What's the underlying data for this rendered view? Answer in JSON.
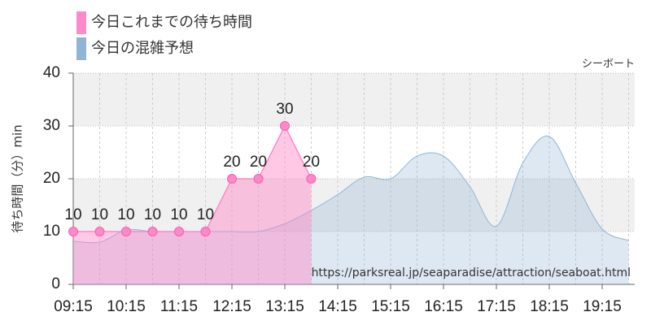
{
  "chart_data": {
    "type": "area",
    "title": "シーボート",
    "y_label": "待ち時間（分）min",
    "source": "https://parksreal.jp/seaparadise/attraction/seaboat.html",
    "x": [
      "09:15",
      "09:45",
      "10:15",
      "10:45",
      "11:15",
      "11:45",
      "12:15",
      "12:45",
      "13:15",
      "13:45",
      "14:15",
      "14:45",
      "15:15",
      "15:45",
      "16:15",
      "16:45",
      "17:15",
      "17:45",
      "18:15",
      "18:45",
      "19:15",
      "19:45"
    ],
    "xticks": [
      "09:15",
      "10:15",
      "11:15",
      "12:15",
      "13:15",
      "14:15",
      "15:15",
      "16:15",
      "17:15",
      "18:15",
      "19:15"
    ],
    "ylim": [
      0,
      40
    ],
    "yticks": [
      0,
      10,
      20,
      30,
      40
    ],
    "grid": true,
    "series": [
      {
        "name": "今日これまでの待ち時間",
        "color": "#ff88c8",
        "values": [
          10,
          10,
          10,
          10,
          10,
          10,
          20,
          20,
          30,
          20,
          null,
          null,
          null,
          null,
          null,
          null,
          null,
          null,
          null,
          null,
          null,
          null
        ]
      },
      {
        "name": "今日の混雑予想",
        "color": "#92b4d4",
        "values": [
          8.2,
          8,
          10.3,
          10,
          10,
          10,
          10,
          10,
          11.5,
          14,
          17,
          20.3,
          20,
          24.3,
          24.3,
          18.5,
          11,
          23,
          28,
          19.2,
          10.5,
          8.3
        ]
      }
    ]
  }
}
